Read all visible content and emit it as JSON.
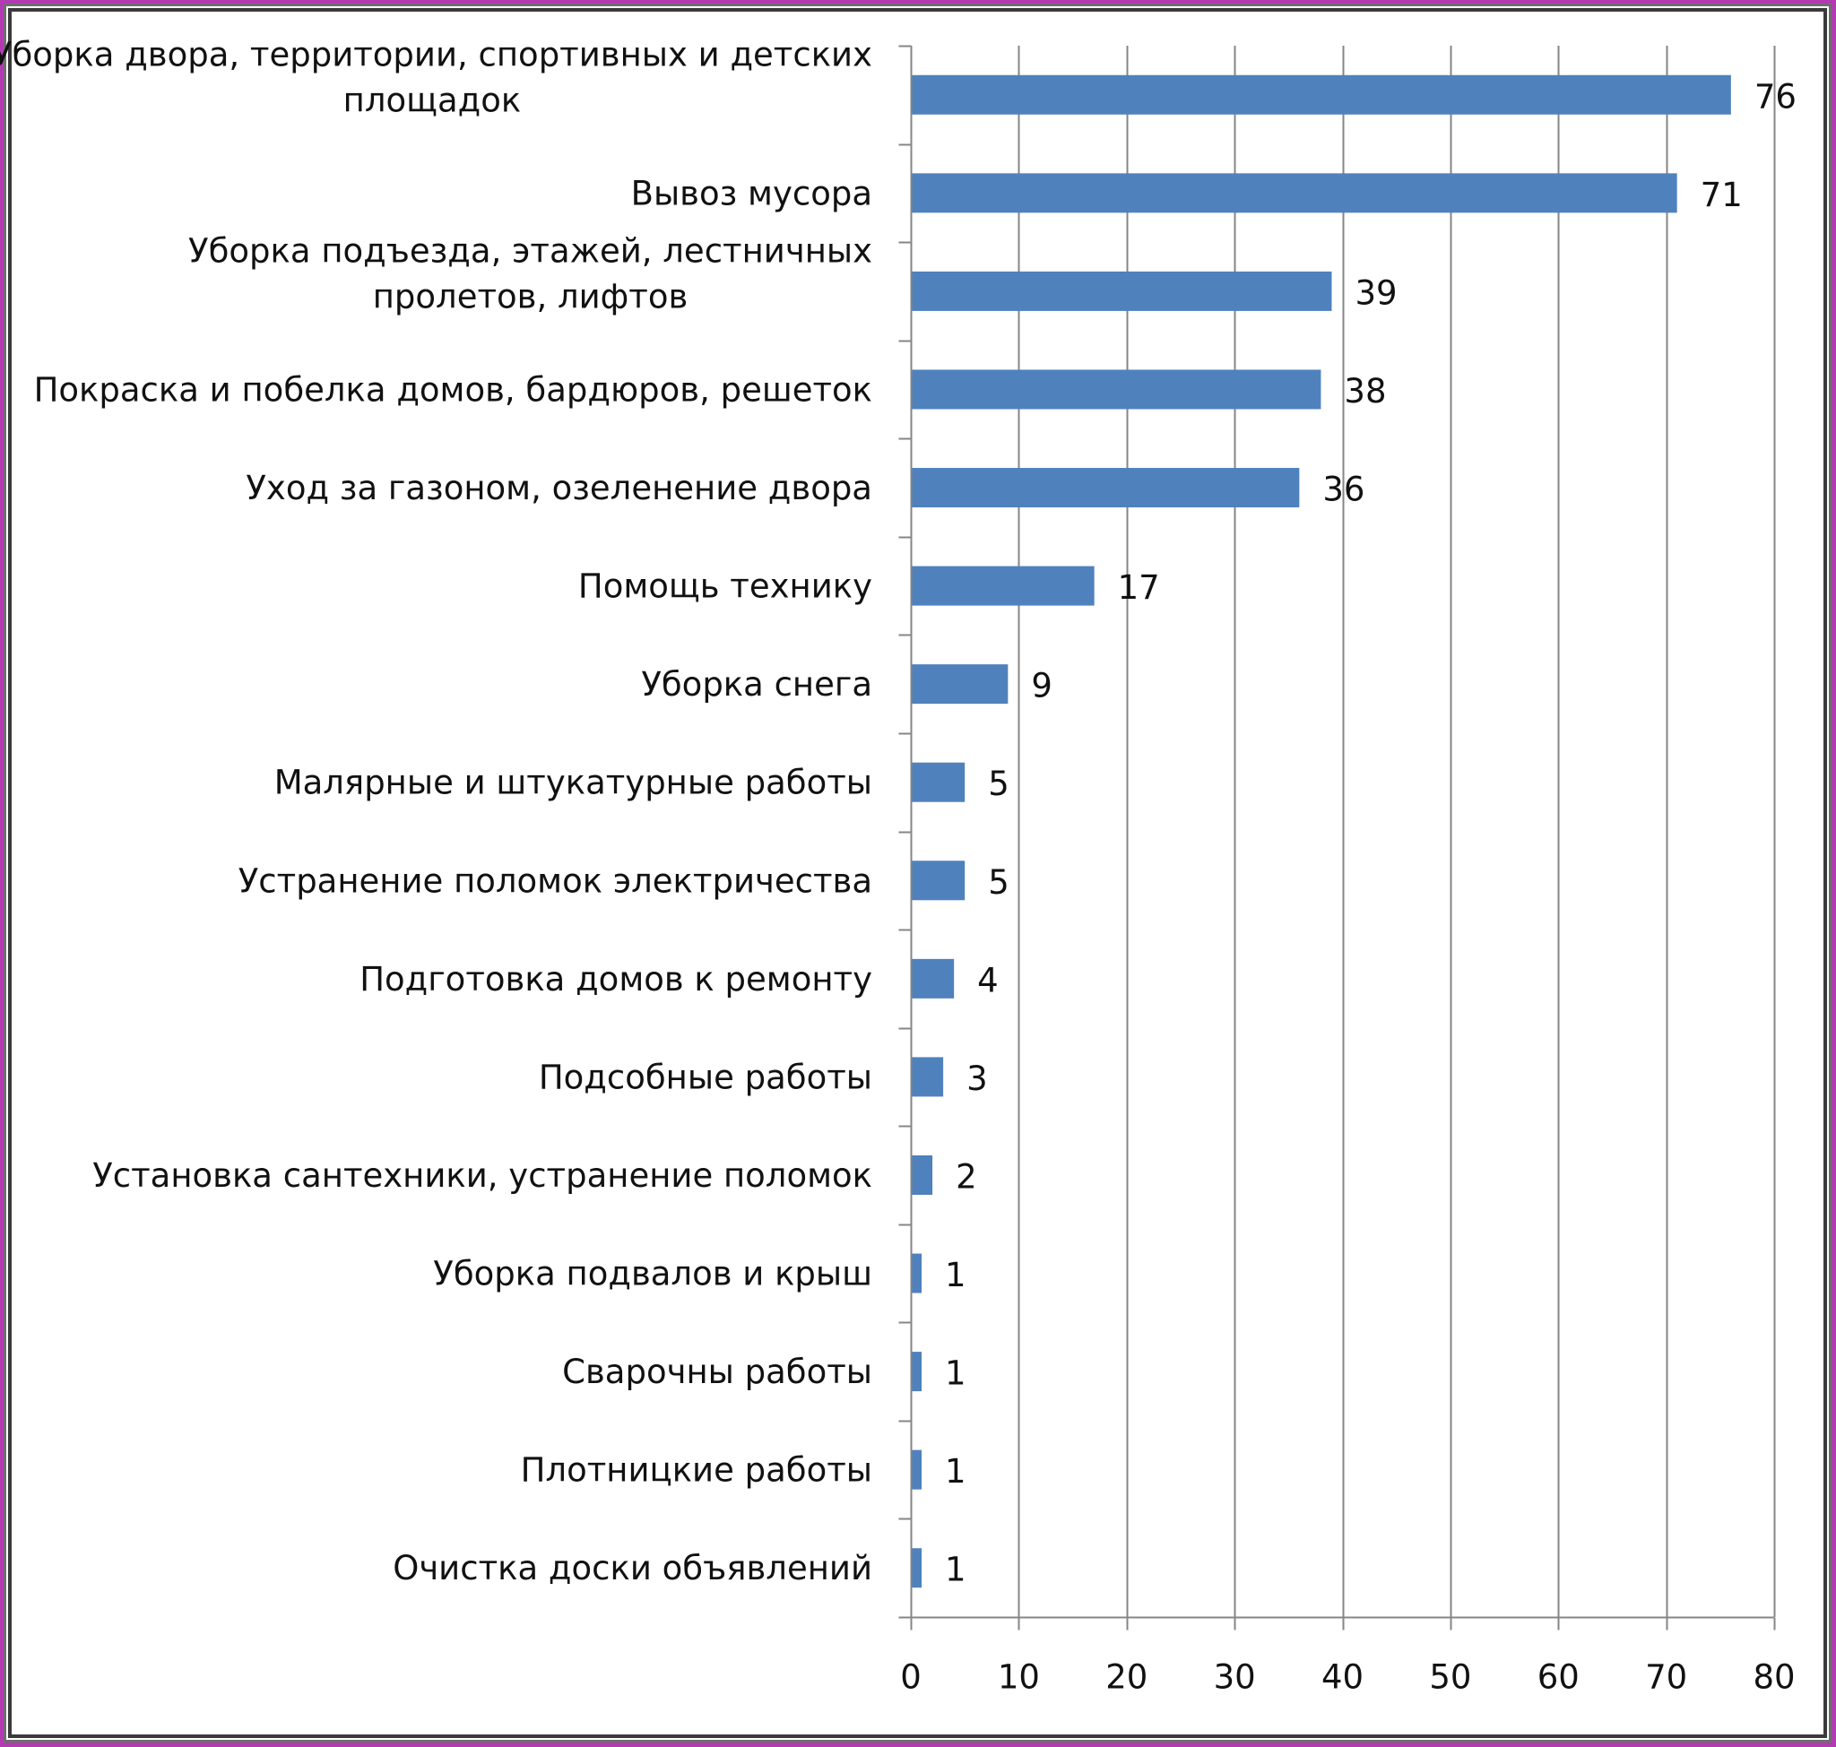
{
  "chart_data": {
    "type": "bar",
    "orientation": "horizontal",
    "title": "",
    "xlabel": "",
    "ylabel": "",
    "categories": [
      "Уборка двора, территории, спортивных и детских площадок",
      "Вывоз мусора",
      "Уборка подъезда, этажей, лестничных пролетов, лифтов",
      "Покраска и побелка домов, бардюров, решеток",
      "Уход за газоном, озеленение двора",
      "Помощь технику",
      "Уборка снега",
      "Малярные и штукатурные работы",
      "Устранение поломок электричества",
      "Подготовка домов к ремонту",
      "Подсобные работы",
      "Установка сантехники, устранение поломок",
      "Уборка подвалов и крыш",
      "Сварочны работы",
      "Плотницкие работы",
      "Очистка доски объявлений"
    ],
    "category_lines": [
      [
        "Уборка двора, территории, спортивных и детских",
        "площадок"
      ],
      [
        "Вывоз мусора"
      ],
      [
        "Уборка подъезда, этажей, лестничных",
        "пролетов, лифтов"
      ],
      [
        "Покраска и побелка домов, бардюров, решеток"
      ],
      [
        "Уход за газоном, озеленение двора"
      ],
      [
        "Помощь технику"
      ],
      [
        "Уборка снега"
      ],
      [
        "Малярные и штукатурные работы"
      ],
      [
        "Устранение поломок электричества"
      ],
      [
        "Подготовка домов к ремонту"
      ],
      [
        "Подсобные работы"
      ],
      [
        "Установка сантехники, устранение поломок"
      ],
      [
        "Уборка подвалов и крыш"
      ],
      [
        "Сварочны работы"
      ],
      [
        "Плотницкие работы"
      ],
      [
        "Очистка доски объявлений"
      ]
    ],
    "values": [
      76,
      71,
      39,
      38,
      36,
      17,
      9,
      5,
      5,
      4,
      3,
      2,
      1,
      1,
      1,
      1
    ],
    "xlim": [
      0,
      80
    ],
    "xticks": [
      0,
      10,
      20,
      30,
      40,
      50,
      60,
      70,
      80
    ],
    "grid": "vertical",
    "legend": "none",
    "bar_color": "#4f81bd",
    "frame_color": "#b23bb2"
  }
}
